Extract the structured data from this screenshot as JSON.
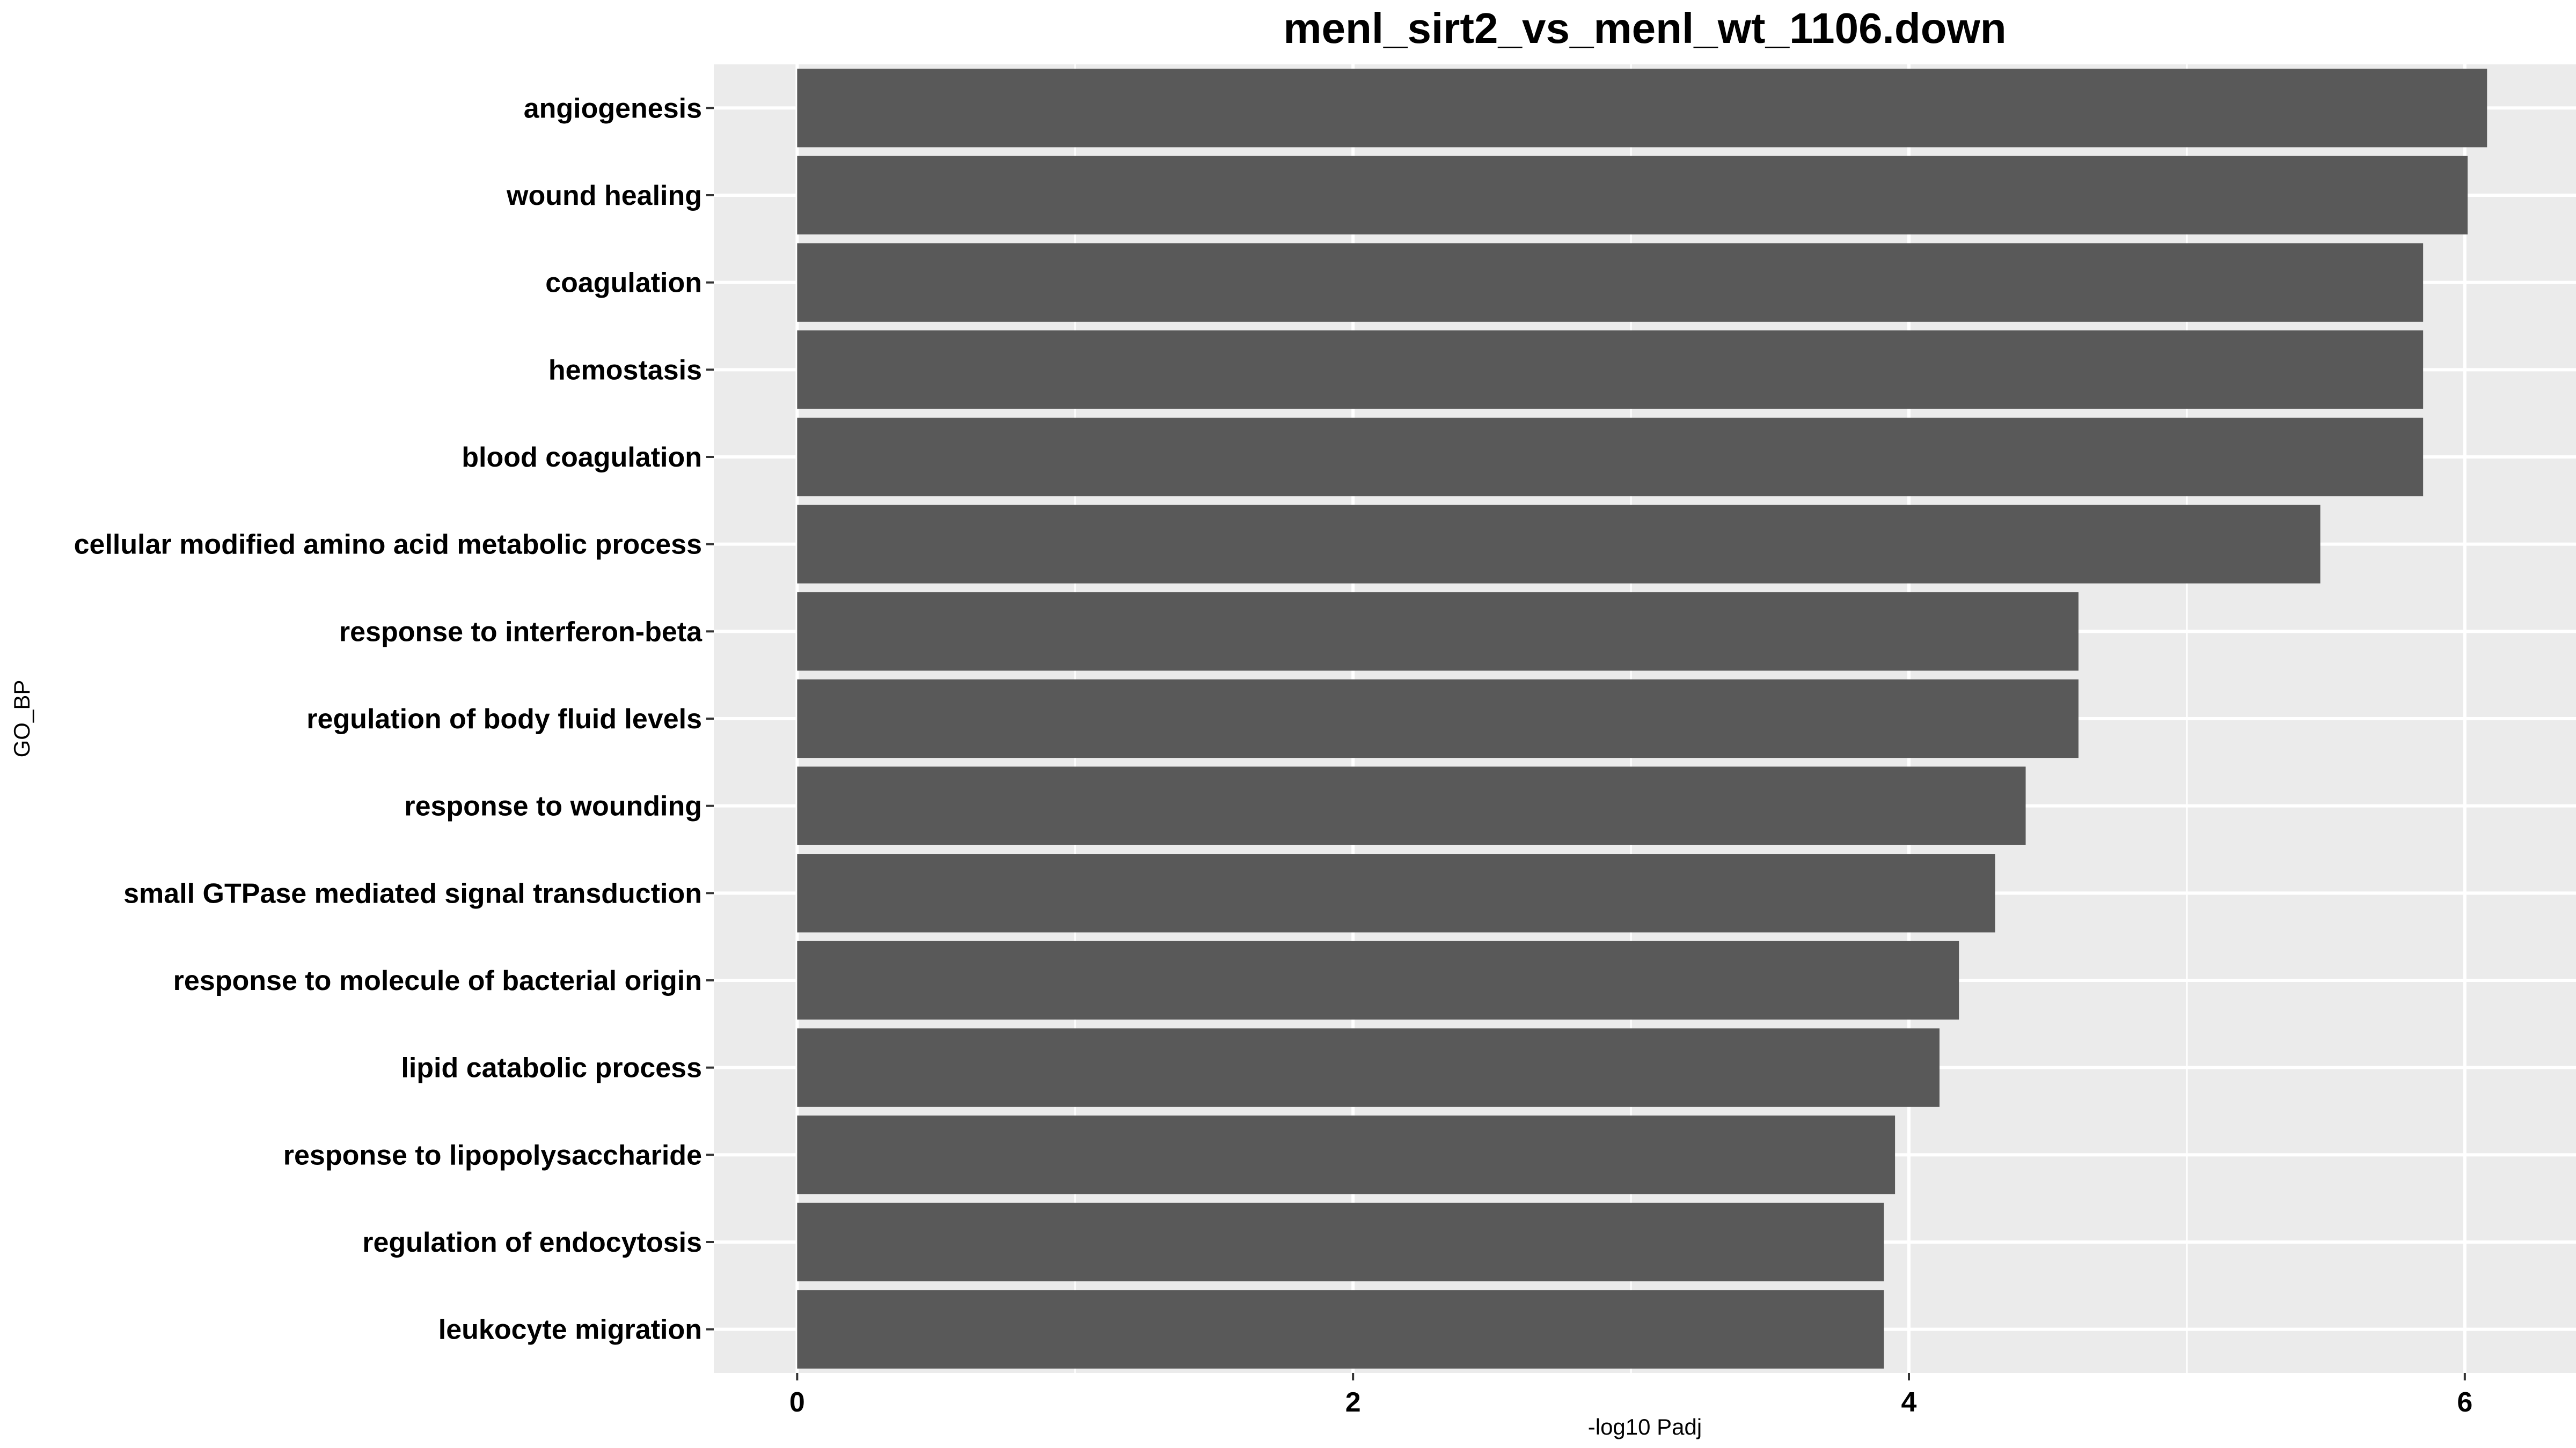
{
  "chart_data": {
    "type": "bar",
    "orientation": "horizontal",
    "title": "menl_sirt2_vs_menl_wt_1106.down",
    "xlabel": "-log10 Padj",
    "ylabel": "GO_BP",
    "categories": [
      "angiogenesis",
      "wound healing",
      "coagulation",
      "hemostasis",
      "blood coagulation",
      "cellular modified amino acid metabolic process",
      "response to interferon-beta",
      "regulation of body fluid levels",
      "response to wounding",
      "small GTPase mediated signal transduction",
      "response to molecule of bacterial origin",
      "lipid catabolic process",
      "response to lipopolysaccharide",
      "regulation of endocytosis",
      "leukocyte migration"
    ],
    "values": [
      6.08,
      6.01,
      5.85,
      5.85,
      5.85,
      5.48,
      4.61,
      4.61,
      4.42,
      4.31,
      4.18,
      4.11,
      3.95,
      3.91,
      3.91
    ],
    "xlim": [
      -0.3,
      6.4
    ],
    "xticks": [
      0,
      2,
      4,
      6
    ],
    "grid": true,
    "colors": {
      "bar": "#595959",
      "panel": "#ebebeb",
      "grid": "#ffffff",
      "text": "#000000"
    }
  }
}
